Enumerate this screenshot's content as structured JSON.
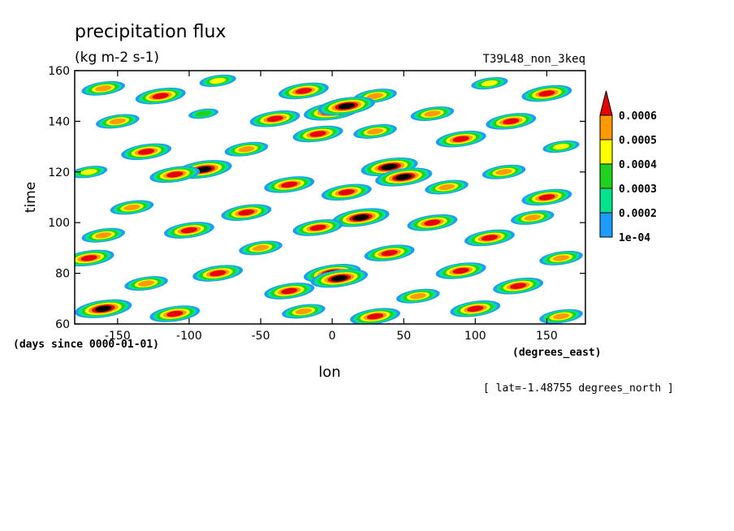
{
  "chart_data": {
    "type": "heatmap",
    "title": "precipitation flux",
    "units": "(kg m-2 s-1)",
    "run_label": "T39L48_non_3keq",
    "xlabel": "lon",
    "xunits": "(degrees_east)",
    "ylabel": "time",
    "yunits": "(days since 0000-01-01)",
    "slice_note": "[ lat=-1.48755 degrees_north ]",
    "xlim": [
      -180,
      177
    ],
    "ylim": [
      60,
      160
    ],
    "xticks": [
      -150,
      -100,
      -50,
      0,
      50,
      100,
      150
    ],
    "xtick_labels": [
      "-150",
      "-100",
      "-50",
      "0",
      "50",
      "100",
      "150"
    ],
    "yticks": [
      60,
      80,
      100,
      120,
      140,
      160
    ],
    "ytick_labels": [
      "60",
      "80",
      "100",
      "120",
      "140",
      "160"
    ],
    "levels": [
      0.0001,
      0.0002,
      0.0003,
      0.0004,
      0.0005,
      0.0006
    ],
    "level_labels": [
      "1e-04",
      "0.0002",
      "0.0003",
      "0.0004",
      "0.0005",
      "0.0006"
    ],
    "colors": [
      "#ffffff",
      "#1e9bff",
      "#00e58c",
      "#1ed21e",
      "#ffff00",
      "#ff9900",
      "#e60000"
    ],
    "cells": [
      {
        "lon": -160,
        "t": 153,
        "v": 5
      },
      {
        "lon": -120,
        "t": 150,
        "v": 6
      },
      {
        "lon": -80,
        "t": 156,
        "v": 4
      },
      {
        "lon": -20,
        "t": 152,
        "v": 6
      },
      {
        "lon": 30,
        "t": 150,
        "v": 5
      },
      {
        "lon": 110,
        "t": 155,
        "v": 4
      },
      {
        "lon": 150,
        "t": 151,
        "v": 6
      },
      {
        "lon": 0,
        "t": 144,
        "v": 7
      },
      {
        "lon": 10,
        "t": 146,
        "v": 7
      },
      {
        "lon": -40,
        "t": 141,
        "v": 6
      },
      {
        "lon": 70,
        "t": 143,
        "v": 5
      },
      {
        "lon": 125,
        "t": 140,
        "v": 6
      },
      {
        "lon": -150,
        "t": 140,
        "v": 5
      },
      {
        "lon": -90,
        "t": 143,
        "v": 3
      },
      {
        "lon": -10,
        "t": 135,
        "v": 6
      },
      {
        "lon": 30,
        "t": 136,
        "v": 5
      },
      {
        "lon": 90,
        "t": 133,
        "v": 6
      },
      {
        "lon": 160,
        "t": 130,
        "v": 4
      },
      {
        "lon": -130,
        "t": 128,
        "v": 6
      },
      {
        "lon": -60,
        "t": 129,
        "v": 5
      },
      {
        "lon": -90,
        "t": 121,
        "v": 7
      },
      {
        "lon": -110,
        "t": 119,
        "v": 6
      },
      {
        "lon": 40,
        "t": 122,
        "v": 7
      },
      {
        "lon": 50,
        "t": 118,
        "v": 7
      },
      {
        "lon": 120,
        "t": 120,
        "v": 5
      },
      {
        "lon": -170,
        "t": 120,
        "v": 4
      },
      {
        "lon": -30,
        "t": 115,
        "v": 6
      },
      {
        "lon": 10,
        "t": 112,
        "v": 6
      },
      {
        "lon": 80,
        "t": 114,
        "v": 5
      },
      {
        "lon": 150,
        "t": 110,
        "v": 6
      },
      {
        "lon": -140,
        "t": 106,
        "v": 5
      },
      {
        "lon": -60,
        "t": 104,
        "v": 6
      },
      {
        "lon": 20,
        "t": 102,
        "v": 7
      },
      {
        "lon": -10,
        "t": 98,
        "v": 6
      },
      {
        "lon": 70,
        "t": 100,
        "v": 6
      },
      {
        "lon": 140,
        "t": 102,
        "v": 5
      },
      {
        "lon": -100,
        "t": 97,
        "v": 6
      },
      {
        "lon": -160,
        "t": 95,
        "v": 5
      },
      {
        "lon": 110,
        "t": 94,
        "v": 6
      },
      {
        "lon": -50,
        "t": 90,
        "v": 5
      },
      {
        "lon": 40,
        "t": 88,
        "v": 6
      },
      {
        "lon": -170,
        "t": 86,
        "v": 6
      },
      {
        "lon": 160,
        "t": 86,
        "v": 5
      },
      {
        "lon": 0,
        "t": 80,
        "v": 7
      },
      {
        "lon": 5,
        "t": 78,
        "v": 7
      },
      {
        "lon": -80,
        "t": 80,
        "v": 6
      },
      {
        "lon": 90,
        "t": 81,
        "v": 6
      },
      {
        "lon": -130,
        "t": 76,
        "v": 5
      },
      {
        "lon": 130,
        "t": 75,
        "v": 6
      },
      {
        "lon": -30,
        "t": 73,
        "v": 6
      },
      {
        "lon": 60,
        "t": 71,
        "v": 5
      },
      {
        "lon": -160,
        "t": 66,
        "v": 7
      },
      {
        "lon": -110,
        "t": 64,
        "v": 6
      },
      {
        "lon": -20,
        "t": 65,
        "v": 5
      },
      {
        "lon": 30,
        "t": 63,
        "v": 6
      },
      {
        "lon": 100,
        "t": 66,
        "v": 6
      },
      {
        "lon": 160,
        "t": 63,
        "v": 5
      }
    ]
  }
}
